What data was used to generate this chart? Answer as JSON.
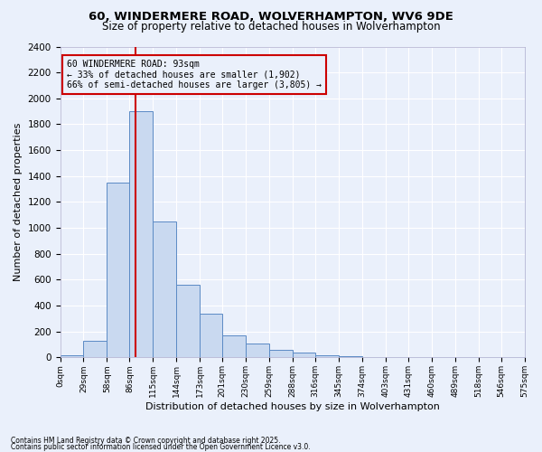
{
  "title1": "60, WINDERMERE ROAD, WOLVERHAMPTON, WV6 9DE",
  "title2": "Size of property relative to detached houses in Wolverhampton",
  "xlabel": "Distribution of detached houses by size in Wolverhampton",
  "ylabel": "Number of detached properties",
  "footnote1": "Contains HM Land Registry data © Crown copyright and database right 2025.",
  "footnote2": "Contains public sector information licensed under the Open Government Licence v3.0.",
  "annotation_line1": "60 WINDERMERE ROAD: 93sqm",
  "annotation_line2": "← 33% of detached houses are smaller (1,902)",
  "annotation_line3": "66% of semi-detached houses are larger (3,805) →",
  "property_size": 93,
  "bin_edges": [
    0,
    29,
    58,
    86,
    115,
    144,
    173,
    201,
    230,
    259,
    288,
    316,
    345,
    374,
    403,
    431,
    460,
    489,
    518,
    546,
    575
  ],
  "bar_heights": [
    15,
    130,
    1350,
    1900,
    1050,
    560,
    335,
    170,
    110,
    60,
    35,
    15,
    10,
    5,
    3,
    2,
    1,
    1,
    1,
    1
  ],
  "bar_color": "#c9d9f0",
  "bar_edge_color": "#5b8ac5",
  "red_line_color": "#cc0000",
  "annotation_box_color": "#cc0000",
  "bg_color": "#eaf0fb",
  "grid_color": "#ffffff",
  "ylim": [
    0,
    2400
  ],
  "yticks": [
    0,
    200,
    400,
    600,
    800,
    1000,
    1200,
    1400,
    1600,
    1800,
    2000,
    2200,
    2400
  ]
}
